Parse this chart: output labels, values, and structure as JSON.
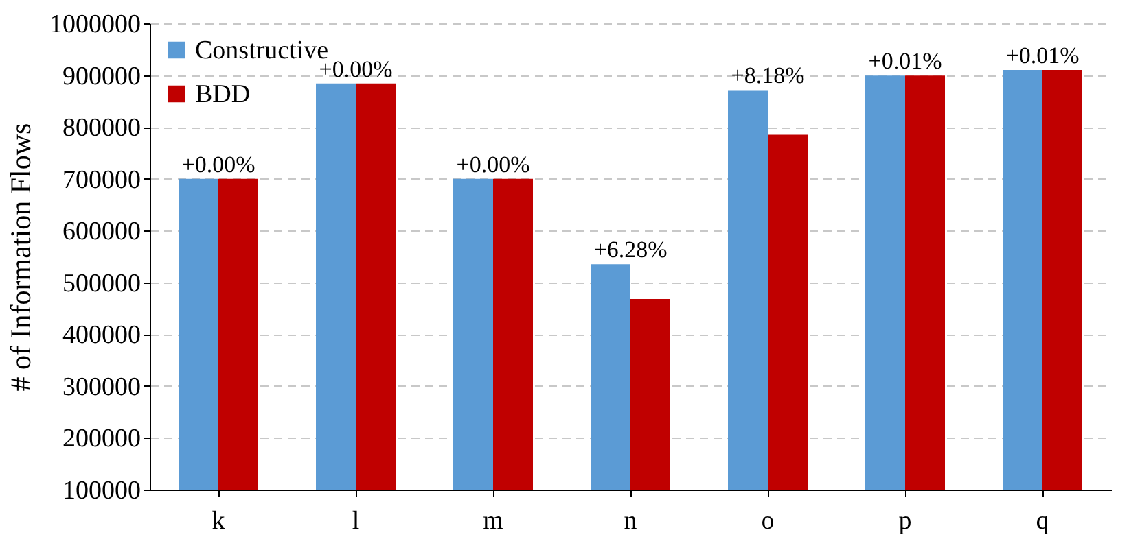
{
  "chart_data": {
    "type": "bar",
    "ylabel": "# of Information Flows",
    "categories": [
      "k",
      "l",
      "m",
      "n",
      "o",
      "p",
      "q"
    ],
    "series": [
      {
        "name": "Constructive",
        "color": "#5b9bd5",
        "values": [
          700000,
          884000,
          700000,
          535000,
          871000,
          899000,
          910000
        ]
      },
      {
        "name": "BDD",
        "color": "#c00000",
        "values": [
          700000,
          884000,
          700000,
          468000,
          785000,
          899000,
          910000
        ]
      }
    ],
    "ylim": [
      100000,
      1000000
    ],
    "yticks": [
      100000,
      200000,
      300000,
      400000,
      500000,
      600000,
      700000,
      800000,
      900000,
      1000000
    ],
    "grid": "y",
    "legend": "top left",
    "annotations": [
      {
        "text": "+0.00%",
        "x": "k",
        "y": 700000
      },
      {
        "text": "+0.00%",
        "x": "l",
        "y": 884000
      },
      {
        "text": "+0.00%",
        "x": "m",
        "y": 700000
      },
      {
        "text": "+6.28%",
        "x": "n",
        "y": 535000
      },
      {
        "text": "+8.18%",
        "x": "o",
        "y": 871000
      },
      {
        "text": "+0.01%",
        "x": "p",
        "y": 899000
      },
      {
        "text": "+0.01%",
        "x": "q",
        "y": 910000
      }
    ]
  }
}
